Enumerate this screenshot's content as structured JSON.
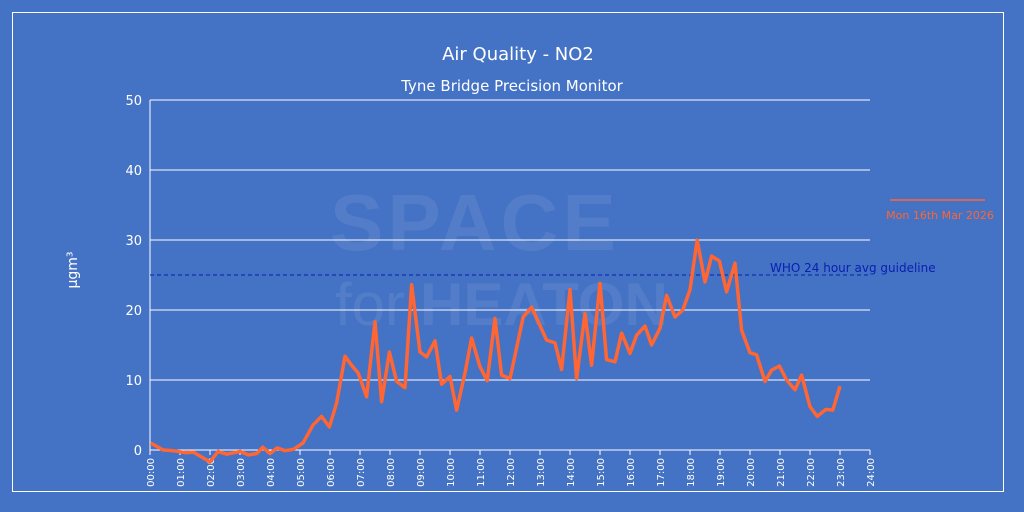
{
  "chart_data": {
    "type": "line",
    "title": "Air Quality - NO2",
    "subtitle": "Tyne Bridge Precision Monitor",
    "xlabel": "",
    "ylabel": "µgm³",
    "xlim": [
      0,
      24
    ],
    "ylim": [
      0,
      50
    ],
    "yticks": [
      "0",
      "10",
      "20",
      "30",
      "40",
      "50"
    ],
    "xticks": [
      "00:00",
      "01:00",
      "02:00",
      "03:00",
      "04:00",
      "05:00",
      "06:00",
      "07:00",
      "08:00",
      "09:00",
      "10:00",
      "11:00",
      "12:00",
      "13:00",
      "14:00",
      "15:00",
      "16:00",
      "17:00",
      "18:00",
      "19:00",
      "20:00",
      "21:00",
      "22:00",
      "23:00",
      "24:00"
    ],
    "grid": true,
    "legend_position": "right",
    "series": [
      {
        "name": "Mon 16th Mar 2026",
        "color": "#ff6633",
        "x": [
          0.02,
          0.44,
          0.77,
          1.22,
          1.44,
          2.0,
          2.27,
          2.56,
          3.0,
          3.28,
          3.56,
          3.76,
          4.0,
          4.24,
          4.5,
          4.78,
          5.1,
          5.44,
          5.72,
          5.98,
          6.22,
          6.5,
          6.72,
          6.94,
          7.22,
          7.5,
          7.72,
          7.98,
          8.22,
          8.5,
          8.72,
          9.0,
          9.22,
          9.5,
          9.72,
          10.0,
          10.22,
          10.5,
          10.72,
          11.0,
          11.24,
          11.5,
          11.72,
          12.0,
          12.44,
          12.72,
          13.22,
          13.5,
          13.72,
          14.0,
          14.22,
          14.5,
          14.72,
          15.0,
          15.22,
          15.5,
          15.72,
          16.0,
          16.22,
          16.5,
          16.72,
          17.0,
          17.22,
          17.5,
          17.76,
          18.0,
          18.24,
          18.5,
          18.72,
          18.98,
          19.22,
          19.5,
          19.72,
          20.0,
          20.22,
          20.5,
          20.72,
          20.98,
          21.22,
          21.5,
          21.72,
          22.0,
          22.24,
          22.53,
          22.76,
          23.0
        ],
        "values": [
          1.0,
          0.0,
          -0.1,
          -0.4,
          -0.3,
          -1.7,
          -0.2,
          -0.6,
          -0.2,
          -0.7,
          -0.5,
          0.4,
          -0.5,
          0.3,
          -0.1,
          0.1,
          1.0,
          3.6,
          4.8,
          3.3,
          6.7,
          13.4,
          12.1,
          11.0,
          7.6,
          18.3,
          6.9,
          14.0,
          9.8,
          8.9,
          23.6,
          14.0,
          13.3,
          15.6,
          9.4,
          10.5,
          5.7,
          11.0,
          16.0,
          11.9,
          9.9,
          18.8,
          10.7,
          10.2,
          19.0,
          20.4,
          15.7,
          15.3,
          11.5,
          22.9,
          10.2,
          19.5,
          12.1,
          23.8,
          12.9,
          12.6,
          16.7,
          13.8,
          16.4,
          17.7,
          15.0,
          17.4,
          22.1,
          19.0,
          20.0,
          22.9,
          30.0,
          24.0,
          27.7,
          27.0,
          22.6,
          26.7,
          17.1,
          13.9,
          13.6,
          9.8,
          11.4,
          12.0,
          10.0,
          8.6,
          10.7,
          6.2,
          4.8,
          5.8,
          5.7,
          9.1
        ]
      }
    ],
    "annotations": [
      {
        "text": "WHO 24 hour avg guideline",
        "y": 25,
        "color": "#0a1fb0"
      }
    ],
    "watermark": "SPACE for HEATON"
  }
}
